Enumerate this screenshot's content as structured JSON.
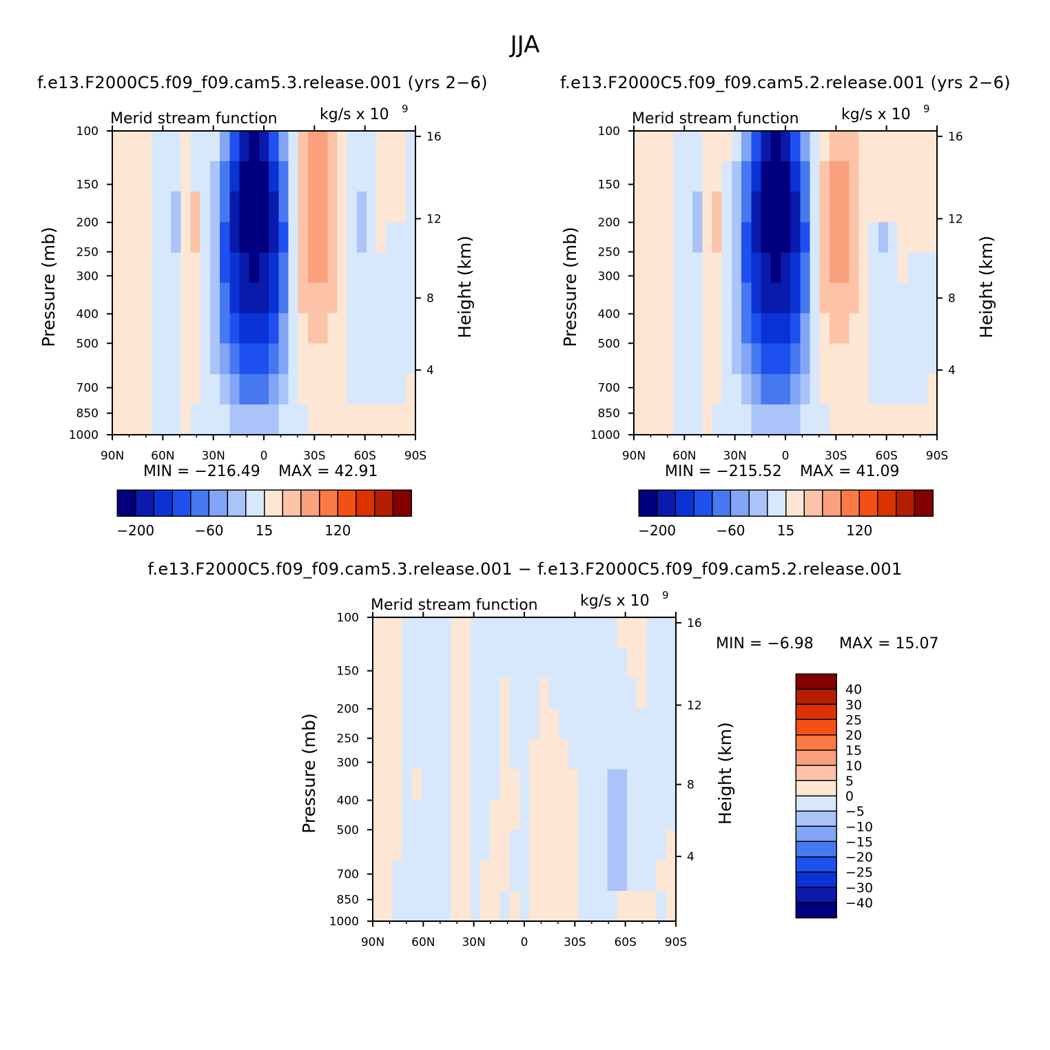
{
  "figure": {
    "title": "JJA"
  },
  "chart_data": [
    {
      "type": "heatmap",
      "run_title": "f.e13.F2000C5.f09_f09.cam5.3.release.001 (yrs 2−6)",
      "left_title": "Merid stream function",
      "units_label": "kg/s x 10",
      "units_exp": "9",
      "ylabel": "Pressure (mb)",
      "ylabel_right": "Height (km)",
      "x_ticks": [
        "90N",
        "60N",
        "30N",
        "0",
        "30S",
        "60S",
        "90S"
      ],
      "y_ticks": [
        "100",
        "150",
        "200",
        "250",
        "300",
        "400",
        "500",
        "700",
        "850",
        "1000"
      ],
      "y_ticks_right": [
        "16",
        "12",
        "8",
        "4"
      ],
      "min_label": "MIN = −216.49",
      "max_label": "MAX =  42.91",
      "min": -216.49,
      "max": 42.91,
      "levels_shown": [
        "−200",
        "−60",
        "15",
        "120"
      ],
      "colors": [
        "#00007f",
        "#0a1aab",
        "#0a32d5",
        "#1e50f0",
        "#4678f0",
        "#82a5f5",
        "#aac3f8",
        "#d7e8fc",
        "#fde6d4",
        "#fcc3a8",
        "#fba07d",
        "#fa7a46",
        "#f55014",
        "#dc3200",
        "#b41e00",
        "#820000"
      ],
      "cells": [
        [
          8,
          8,
          8,
          8,
          7,
          7,
          7,
          8,
          7,
          7,
          7,
          5,
          3,
          1,
          0,
          1,
          3,
          5,
          7,
          9,
          10,
          10,
          9,
          8,
          7,
          7,
          7,
          8,
          8,
          8,
          7
        ],
        [
          8,
          8,
          8,
          8,
          7,
          7,
          7,
          8,
          7,
          7,
          6,
          4,
          2,
          0,
          0,
          0,
          2,
          4,
          7,
          9,
          10,
          10,
          9,
          8,
          7,
          7,
          7,
          8,
          8,
          8,
          7
        ],
        [
          8,
          8,
          8,
          8,
          7,
          7,
          6,
          8,
          9,
          7,
          6,
          4,
          1,
          0,
          0,
          0,
          1,
          4,
          7,
          9,
          10,
          10,
          9,
          8,
          7,
          6,
          7,
          8,
          8,
          8,
          7
        ],
        [
          8,
          8,
          8,
          8,
          7,
          7,
          6,
          8,
          9,
          7,
          6,
          3,
          1,
          0,
          0,
          0,
          1,
          3,
          7,
          9,
          10,
          10,
          9,
          8,
          7,
          6,
          7,
          8,
          7,
          7,
          7
        ],
        [
          8,
          8,
          8,
          8,
          7,
          7,
          7,
          8,
          8,
          7,
          6,
          3,
          2,
          1,
          0,
          1,
          2,
          4,
          7,
          9,
          10,
          10,
          9,
          8,
          7,
          7,
          7,
          7,
          7,
          7,
          7
        ],
        [
          8,
          8,
          8,
          8,
          7,
          7,
          7,
          8,
          8,
          7,
          6,
          4,
          2,
          1,
          1,
          1,
          2,
          4,
          7,
          9,
          9,
          9,
          9,
          8,
          7,
          7,
          7,
          7,
          7,
          7,
          7
        ],
        [
          8,
          8,
          8,
          8,
          7,
          7,
          7,
          8,
          8,
          7,
          6,
          4,
          3,
          2,
          2,
          2,
          3,
          5,
          7,
          8,
          9,
          9,
          8,
          8,
          7,
          7,
          7,
          7,
          7,
          7,
          7
        ],
        [
          8,
          8,
          8,
          8,
          7,
          7,
          7,
          8,
          8,
          7,
          6,
          5,
          4,
          3,
          3,
          3,
          4,
          5,
          7,
          8,
          8,
          8,
          8,
          8,
          7,
          7,
          7,
          7,
          7,
          7,
          7
        ],
        [
          8,
          8,
          8,
          8,
          7,
          7,
          7,
          8,
          8,
          7,
          7,
          6,
          5,
          4,
          4,
          4,
          5,
          6,
          7,
          8,
          8,
          8,
          8,
          8,
          7,
          7,
          7,
          7,
          7,
          7,
          8
        ],
        [
          8,
          8,
          8,
          8,
          7,
          7,
          7,
          8,
          7,
          7,
          7,
          7,
          6,
          6,
          6,
          6,
          6,
          7,
          7,
          7,
          8,
          8,
          8,
          8,
          8,
          8,
          8,
          8,
          8,
          8,
          8
        ]
      ]
    },
    {
      "type": "heatmap",
      "run_title": "f.e13.F2000C5.f09_f09.cam5.2.release.001 (yrs 2−6)",
      "left_title": "Merid stream function",
      "units_label": "kg/s x 10",
      "units_exp": "9",
      "ylabel": "Pressure (mb)",
      "ylabel_right": "Height (km)",
      "x_ticks": [
        "90N",
        "60N",
        "30N",
        "0",
        "30S",
        "60S",
        "90S"
      ],
      "y_ticks": [
        "100",
        "150",
        "200",
        "250",
        "300",
        "400",
        "500",
        "700",
        "850",
        "1000"
      ],
      "y_ticks_right": [
        "16",
        "12",
        "8",
        "4"
      ],
      "min_label": "MIN = −215.52",
      "max_label": "MAX =  41.09",
      "min": -215.52,
      "max": 41.09,
      "levels_shown": [
        "−200",
        "−60",
        "15",
        "120"
      ],
      "colors": [
        "#00007f",
        "#0a1aab",
        "#0a32d5",
        "#1e50f0",
        "#4678f0",
        "#82a5f5",
        "#aac3f8",
        "#d7e8fc",
        "#fde6d4",
        "#fcc3a8",
        "#fba07d",
        "#fa7a46",
        "#f55014",
        "#dc3200",
        "#b41e00",
        "#820000"
      ],
      "cells": [
        [
          8,
          8,
          8,
          8,
          7,
          7,
          7,
          8,
          8,
          8,
          7,
          5,
          3,
          1,
          0,
          1,
          3,
          5,
          7,
          8,
          9,
          9,
          9,
          8,
          8,
          8,
          8,
          8,
          8,
          8,
          8
        ],
        [
          8,
          8,
          8,
          8,
          7,
          7,
          7,
          8,
          8,
          7,
          6,
          4,
          2,
          0,
          0,
          0,
          2,
          4,
          7,
          9,
          10,
          10,
          9,
          8,
          8,
          8,
          8,
          8,
          8,
          8,
          8
        ],
        [
          8,
          8,
          8,
          8,
          7,
          7,
          6,
          8,
          9,
          7,
          6,
          4,
          1,
          0,
          0,
          0,
          1,
          4,
          7,
          9,
          10,
          10,
          9,
          8,
          8,
          8,
          8,
          8,
          8,
          8,
          8
        ],
        [
          8,
          8,
          8,
          8,
          7,
          7,
          6,
          8,
          9,
          7,
          6,
          3,
          1,
          0,
          0,
          0,
          1,
          3,
          7,
          9,
          10,
          10,
          9,
          8,
          7,
          6,
          7,
          8,
          8,
          8,
          8
        ],
        [
          8,
          8,
          8,
          8,
          7,
          7,
          7,
          8,
          8,
          7,
          6,
          3,
          2,
          1,
          0,
          1,
          2,
          4,
          7,
          9,
          10,
          10,
          9,
          8,
          7,
          7,
          7,
          8,
          7,
          7,
          7
        ],
        [
          8,
          8,
          8,
          8,
          7,
          7,
          7,
          8,
          8,
          7,
          6,
          4,
          2,
          1,
          1,
          1,
          2,
          4,
          7,
          9,
          9,
          9,
          9,
          8,
          7,
          7,
          7,
          7,
          7,
          7,
          7
        ],
        [
          8,
          8,
          8,
          8,
          7,
          7,
          7,
          8,
          8,
          7,
          6,
          4,
          3,
          2,
          2,
          2,
          3,
          5,
          7,
          8,
          9,
          9,
          8,
          8,
          7,
          7,
          7,
          7,
          7,
          7,
          7
        ],
        [
          8,
          8,
          8,
          8,
          7,
          7,
          7,
          8,
          8,
          7,
          6,
          5,
          4,
          3,
          3,
          3,
          4,
          5,
          7,
          8,
          8,
          8,
          8,
          8,
          7,
          7,
          7,
          7,
          7,
          7,
          7
        ],
        [
          8,
          8,
          8,
          8,
          7,
          7,
          7,
          8,
          8,
          7,
          7,
          6,
          5,
          4,
          4,
          4,
          5,
          6,
          7,
          8,
          8,
          8,
          8,
          8,
          7,
          7,
          7,
          7,
          7,
          7,
          8
        ],
        [
          8,
          8,
          8,
          8,
          7,
          7,
          7,
          8,
          7,
          7,
          7,
          7,
          6,
          6,
          6,
          6,
          6,
          7,
          7,
          7,
          8,
          8,
          8,
          8,
          8,
          8,
          8,
          8,
          8,
          8,
          8
        ]
      ]
    },
    {
      "type": "heatmap",
      "run_title": "f.e13.F2000C5.f09_f09.cam5.3.release.001 − f.e13.F2000C5.f09_f09.cam5.2.release.001",
      "left_title": "Merid stream function",
      "units_label": "kg/s x 10",
      "units_exp": "9",
      "ylabel": "Pressure (mb)",
      "ylabel_right": "Height (km)",
      "x_ticks": [
        "90N",
        "60N",
        "30N",
        "0",
        "30S",
        "60S",
        "90S"
      ],
      "y_ticks": [
        "100",
        "150",
        "200",
        "250",
        "300",
        "400",
        "500",
        "700",
        "850",
        "1000"
      ],
      "y_ticks_right": [
        "16",
        "12",
        "8",
        "4"
      ],
      "min_label": "MIN =   −6.98",
      "max_label": "MAX =   15.07",
      "min": -6.98,
      "max": 15.07,
      "legend_labels": [
        "40",
        "30",
        "25",
        "20",
        "15",
        "10",
        "5",
        "0",
        "−5",
        "−10",
        "−15",
        "−20",
        "−25",
        "−30",
        "−40"
      ],
      "colors": [
        "#00007f",
        "#0a1aab",
        "#0a32d5",
        "#1e50f0",
        "#4678f0",
        "#82a5f5",
        "#aac3f8",
        "#d7e8fc",
        "#fde6d4",
        "#fcc3a8",
        "#fba07d",
        "#fa7a46",
        "#f55014",
        "#dc3200",
        "#b41e00",
        "#820000"
      ],
      "cells": [
        [
          8,
          8,
          8,
          7,
          7,
          7,
          7,
          7,
          8,
          8,
          7,
          7,
          7,
          7,
          7,
          7,
          7,
          7,
          7,
          7,
          7,
          7,
          7,
          7,
          7,
          8,
          8,
          8,
          7,
          7,
          7
        ],
        [
          8,
          8,
          8,
          7,
          7,
          7,
          7,
          7,
          8,
          8,
          7,
          7,
          7,
          7,
          7,
          7,
          7,
          7,
          7,
          7,
          7,
          7,
          7,
          7,
          7,
          7,
          8,
          8,
          7,
          7,
          7
        ],
        [
          8,
          8,
          8,
          7,
          7,
          7,
          7,
          7,
          8,
          8,
          7,
          7,
          7,
          8,
          7,
          7,
          7,
          8,
          7,
          7,
          7,
          7,
          7,
          7,
          7,
          7,
          7,
          8,
          7,
          7,
          7
        ],
        [
          8,
          8,
          8,
          7,
          7,
          7,
          7,
          7,
          8,
          8,
          7,
          7,
          7,
          8,
          7,
          7,
          7,
          8,
          8,
          7,
          7,
          7,
          7,
          7,
          7,
          7,
          7,
          7,
          7,
          7,
          7
        ],
        [
          8,
          8,
          8,
          7,
          7,
          7,
          7,
          7,
          8,
          8,
          7,
          7,
          7,
          8,
          7,
          7,
          8,
          8,
          8,
          8,
          7,
          7,
          7,
          7,
          7,
          7,
          7,
          7,
          7,
          7,
          7
        ],
        [
          8,
          8,
          8,
          7,
          8,
          7,
          7,
          7,
          8,
          8,
          7,
          7,
          7,
          8,
          8,
          7,
          8,
          8,
          8,
          8,
          8,
          7,
          7,
          7,
          6,
          6,
          7,
          7,
          7,
          7,
          7
        ],
        [
          8,
          8,
          8,
          7,
          7,
          7,
          7,
          7,
          8,
          8,
          7,
          7,
          8,
          8,
          8,
          7,
          8,
          8,
          8,
          8,
          8,
          7,
          7,
          7,
          6,
          6,
          7,
          7,
          7,
          7,
          7
        ],
        [
          8,
          8,
          8,
          7,
          7,
          7,
          7,
          7,
          8,
          8,
          7,
          7,
          8,
          8,
          7,
          7,
          8,
          8,
          8,
          8,
          8,
          7,
          7,
          7,
          6,
          6,
          7,
          7,
          7,
          7,
          8
        ],
        [
          8,
          8,
          7,
          7,
          7,
          7,
          7,
          7,
          8,
          8,
          7,
          8,
          8,
          8,
          7,
          7,
          8,
          8,
          8,
          8,
          8,
          7,
          7,
          7,
          6,
          6,
          7,
          7,
          7,
          8,
          8
        ],
        [
          8,
          8,
          7,
          7,
          7,
          7,
          7,
          7,
          8,
          8,
          7,
          8,
          8,
          7,
          8,
          7,
          8,
          8,
          8,
          8,
          8,
          7,
          7,
          7,
          7,
          8,
          8,
          8,
          8,
          7,
          8
        ]
      ]
    }
  ]
}
